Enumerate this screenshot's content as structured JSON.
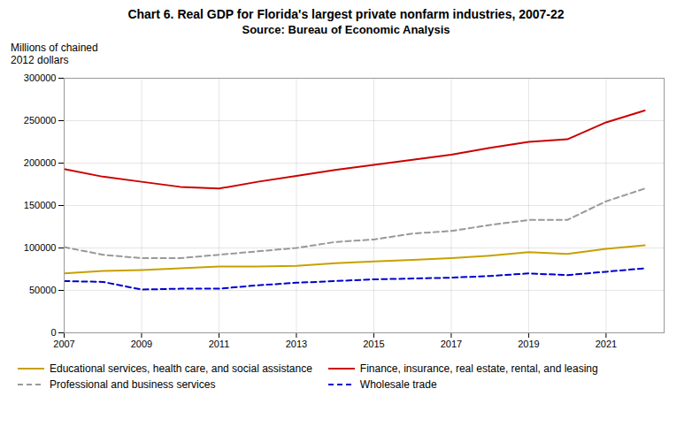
{
  "chart_data": {
    "type": "line",
    "title": "Chart 6. Real GDP for Florida's largest private nonfarm industries, 2007-22",
    "subtitle": "Source: Bureau of Economic Analysis",
    "ylabel": "Millions of chained\n2012 dollars",
    "x": [
      2007,
      2008,
      2009,
      2010,
      2011,
      2012,
      2013,
      2014,
      2015,
      2016,
      2017,
      2018,
      2019,
      2020,
      2021,
      2022
    ],
    "series": [
      {
        "name": "Educational services, health care, and social assistance",
        "color": "#C8A000",
        "line_style": "solid",
        "values": [
          70000,
          73000,
          74000,
          76000,
          78000,
          78000,
          79000,
          82000,
          84000,
          86000,
          88000,
          91000,
          95000,
          93000,
          99000,
          103000
        ]
      },
      {
        "name": "Finance, insurance, real estate, rental, and leasing",
        "color": "#CC0000",
        "line_style": "solid",
        "values": [
          193000,
          184000,
          178000,
          172000,
          170000,
          178000,
          185000,
          192000,
          198000,
          204000,
          210000,
          218000,
          225000,
          228000,
          248000,
          262000
        ]
      },
      {
        "name": "Professional and business services",
        "color": "#999999",
        "line_style": "dashed",
        "values": [
          101000,
          92000,
          88000,
          88000,
          92000,
          96000,
          100000,
          107000,
          110000,
          117000,
          120000,
          127000,
          133000,
          133000,
          155000,
          170000
        ]
      },
      {
        "name": "Wholesale trade",
        "color": "#0000CC",
        "line_style": "dashed",
        "values": [
          61000,
          60000,
          51000,
          52000,
          52000,
          56000,
          59000,
          61000,
          63000,
          64000,
          65000,
          67000,
          70000,
          68000,
          72000,
          76000
        ]
      }
    ],
    "xlim": [
      2007,
      2022.5
    ],
    "xticks": [
      2007,
      2009,
      2011,
      2013,
      2015,
      2017,
      2019,
      2021
    ],
    "ylim": [
      0,
      300000
    ],
    "yticks": [
      0,
      50000,
      100000,
      150000,
      200000,
      250000,
      300000
    ],
    "grid": true,
    "legend": "bottom"
  }
}
